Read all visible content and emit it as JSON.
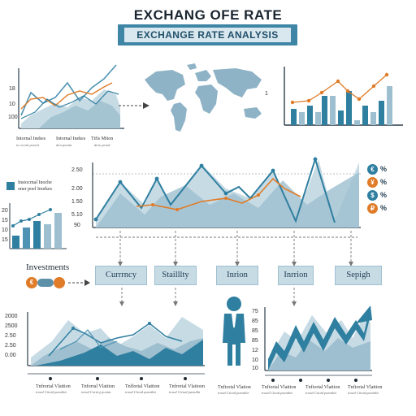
{
  "header": {
    "title": "EXCHANG OFE RATE",
    "banner": "EXCHANGE RATE ANALYSIS"
  },
  "top_left_chart": {
    "ticks": [
      "18",
      "10",
      "100"
    ],
    "labels": [
      {
        "main": "Intornal Inekes",
        "sub": "in ocrnit pooint"
      },
      {
        "main": "Intornal Inekes",
        "sub": "don poniat"
      },
      {
        "main": "Tifis Mtion",
        "sub": "doru priod"
      }
    ]
  },
  "top_right_chart": {
    "tick": "1"
  },
  "side_panel": {
    "legend_main": "Instocrnal Inoche",
    "legend_sub": "oner poel Inorkes",
    "ticks": [
      "20",
      "15",
      "10",
      "15"
    ]
  },
  "middle_chart": {
    "ticks": [
      "2.50",
      "2.00",
      "1.50",
      "5.10",
      "90"
    ]
  },
  "currency_icons": {
    "coins": [
      "€",
      "¥",
      "$",
      "₽"
    ],
    "pct": [
      "%",
      "%",
      "%",
      "%"
    ]
  },
  "flow": {
    "investments": "Investments",
    "boxes": [
      "Currrncy",
      "Stailllty",
      "Inrion",
      "Inrrion",
      "Sepigh"
    ]
  },
  "bottom_left_chart": {
    "ticks": [
      "2000",
      "2500",
      "2.50",
      "2.50",
      "0.00"
    ],
    "labels": [
      {
        "main": "Tnfrorial Vlattion",
        "sub": "troud Ciiotd pueaibit"
      },
      {
        "main": "Tnforral Vlattion",
        "sub": "inrud Cnrtioj pouint"
      },
      {
        "main": "Tnlforial Vlattion",
        "sub": "troud Ciiotd pueaibit"
      },
      {
        "main": "Tnfrorial Vlatioon",
        "sub": "troud Cirtud pueaibit"
      }
    ]
  },
  "bottom_right_chart": {
    "ticks": [
      "75",
      "85",
      "85",
      "85",
      "12",
      "10",
      "10"
    ],
    "labels": [
      {
        "main": "Tnfiorial Vlation",
        "sub": "troud Ciiotd pueaibit"
      },
      {
        "main": "Tnfiorial Vlattion",
        "sub": "troud Ciiotd pueaibit"
      },
      {
        "main": "Tnfiorial Vlattion",
        "sub": "troud Ciiotd pueaibit"
      },
      {
        "main": "Tnfiorial Vlattion",
        "sub": "troud Ciiotd pueaibit"
      }
    ]
  },
  "colors": {
    "dark_blue": "#2f7fa0",
    "mid_blue": "#4f93b4",
    "light_blue": "#9ebfcf",
    "pale_blue": "#c7dbe5",
    "orange": "#e07b27"
  }
}
